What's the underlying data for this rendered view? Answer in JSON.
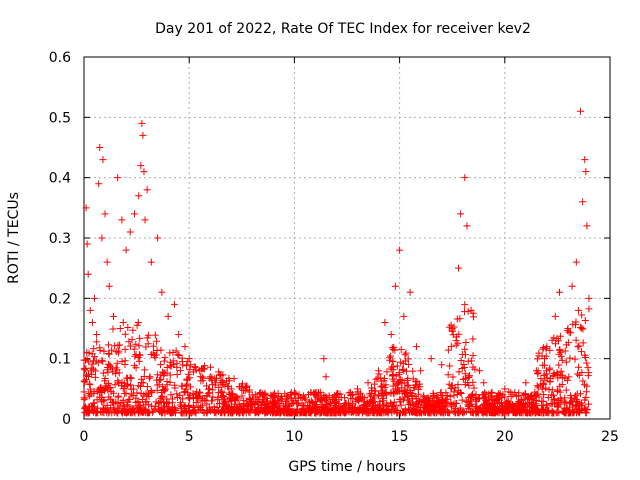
{
  "chart_data": {
    "type": "scatter",
    "title": "Day 201 of 2022, Rate Of TEC Index for receiver kev2",
    "xlabel": "GPS time / hours",
    "ylabel": "ROTI / TECUs",
    "xlim": [
      0,
      25
    ],
    "ylim": [
      0,
      0.6
    ],
    "xticks": [
      0,
      5,
      10,
      15,
      20,
      25
    ],
    "yticks": [
      0,
      0.1,
      0.2,
      0.3,
      0.4,
      0.5,
      0.6
    ],
    "xtick_labels": [
      "0",
      "5",
      "10",
      "15",
      "20",
      "25"
    ],
    "ytick_labels": [
      "0",
      "0.1",
      "0.2",
      "0.3",
      "0.4",
      "0.5",
      "0.6"
    ],
    "grid": true,
    "marker": "+",
    "color": "#ff0000",
    "points": [
      [
        0.1,
        0.35
      ],
      [
        0.15,
        0.29
      ],
      [
        0.2,
        0.24
      ],
      [
        0.3,
        0.18
      ],
      [
        0.4,
        0.16
      ],
      [
        0.5,
        0.2
      ],
      [
        0.6,
        0.14
      ],
      [
        0.7,
        0.39
      ],
      [
        0.75,
        0.45
      ],
      [
        0.85,
        0.3
      ],
      [
        0.9,
        0.43
      ],
      [
        1.0,
        0.34
      ],
      [
        1.1,
        0.26
      ],
      [
        1.2,
        0.22
      ],
      [
        1.4,
        0.17
      ],
      [
        1.6,
        0.4
      ],
      [
        1.8,
        0.33
      ],
      [
        2.0,
        0.28
      ],
      [
        2.2,
        0.31
      ],
      [
        2.4,
        0.34
      ],
      [
        2.6,
        0.37
      ],
      [
        2.7,
        0.42
      ],
      [
        2.75,
        0.49
      ],
      [
        2.8,
        0.47
      ],
      [
        2.85,
        0.41
      ],
      [
        2.9,
        0.33
      ],
      [
        3.0,
        0.38
      ],
      [
        3.2,
        0.26
      ],
      [
        3.5,
        0.3
      ],
      [
        3.7,
        0.21
      ],
      [
        4.0,
        0.17
      ],
      [
        4.3,
        0.19
      ],
      [
        4.5,
        0.14
      ],
      [
        4.8,
        0.12
      ],
      [
        5.0,
        0.1
      ],
      [
        5.5,
        0.08
      ],
      [
        6.0,
        0.07
      ],
      [
        6.5,
        0.06
      ],
      [
        7.0,
        0.05
      ],
      [
        7.5,
        0.05
      ],
      [
        8.0,
        0.04
      ],
      [
        9.0,
        0.04
      ],
      [
        10.0,
        0.04
      ],
      [
        11.0,
        0.04
      ],
      [
        11.4,
        0.1
      ],
      [
        11.5,
        0.07
      ],
      [
        12.0,
        0.04
      ],
      [
        13.0,
        0.05
      ],
      [
        13.5,
        0.06
      ],
      [
        14.0,
        0.08
      ],
      [
        14.3,
        0.16
      ],
      [
        14.6,
        0.14
      ],
      [
        14.8,
        0.22
      ],
      [
        15.0,
        0.28
      ],
      [
        15.2,
        0.17
      ],
      [
        15.5,
        0.21
      ],
      [
        15.8,
        0.12
      ],
      [
        16.0,
        0.08
      ],
      [
        16.5,
        0.1
      ],
      [
        17.0,
        0.09
      ],
      [
        17.5,
        0.15
      ],
      [
        17.8,
        0.25
      ],
      [
        17.9,
        0.34
      ],
      [
        18.1,
        0.4
      ],
      [
        18.2,
        0.32
      ],
      [
        18.4,
        0.18
      ],
      [
        18.8,
        0.08
      ],
      [
        19.0,
        0.06
      ],
      [
        20.0,
        0.05
      ],
      [
        21.0,
        0.06
      ],
      [
        21.5,
        0.08
      ],
      [
        22.0,
        0.12
      ],
      [
        22.4,
        0.17
      ],
      [
        22.6,
        0.21
      ],
      [
        23.0,
        0.15
      ],
      [
        23.2,
        0.22
      ],
      [
        23.4,
        0.26
      ],
      [
        23.5,
        0.18
      ],
      [
        23.6,
        0.51
      ],
      [
        23.7,
        0.36
      ],
      [
        23.8,
        0.43
      ],
      [
        23.85,
        0.41
      ],
      [
        23.9,
        0.32
      ],
      [
        24.0,
        0.2
      ]
    ]
  }
}
